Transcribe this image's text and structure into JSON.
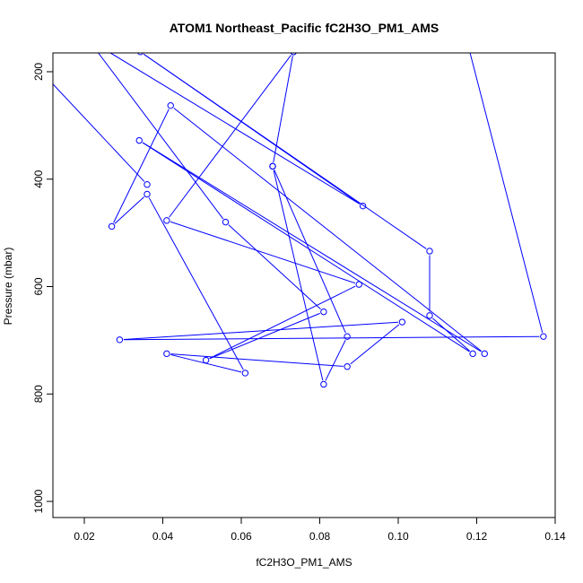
{
  "chart_data": {
    "type": "line",
    "title": "ATOM1 Northeast_Pacific fC2H3O_PM1_AMS",
    "xlabel": "fC2H3O_PM1_AMS",
    "ylabel": "Pressure (mbar)",
    "xlim": [
      0.012,
      0.14
    ],
    "ylim": [
      1030,
      165
    ],
    "y_reversed": true,
    "x_ticks": [
      0.02,
      0.04,
      0.06,
      0.08,
      0.1,
      0.12,
      0.14
    ],
    "x_tick_labels": [
      "0.02",
      "0.04",
      "0.06",
      "0.08",
      "0.10",
      "0.12",
      "0.14"
    ],
    "y_ticks": [
      200,
      400,
      600,
      800,
      1000
    ],
    "y_tick_labels": [
      "200",
      "400",
      "600",
      "800",
      "1000"
    ],
    "marker": "open-circle",
    "color": "#0000ff",
    "grid": false,
    "series": [
      {
        "points": [
          [
            0.116,
            100
          ],
          [
            0.137,
            693
          ],
          [
            0.029,
            699
          ],
          [
            0.101,
            666
          ],
          [
            0.087,
            749
          ],
          [
            0.041,
            725
          ],
          [
            0.061,
            761
          ],
          [
            0.036,
            428
          ],
          [
            0.027,
            488
          ],
          [
            0.042,
            263
          ],
          [
            0.122,
            725
          ],
          [
            0.034,
            328
          ],
          [
            0.119,
            725
          ],
          [
            0.108,
            654
          ],
          [
            0.108,
            534
          ],
          [
            0.0343,
            163
          ],
          [
            0.091,
            450
          ],
          [
            0.021,
            140
          ],
          [
            0.056,
            480
          ],
          [
            0.081,
            647
          ],
          [
            0.051,
            737
          ],
          [
            0.09,
            596
          ],
          [
            0.041,
            477
          ],
          [
            0.0733,
            163
          ]
        ]
      },
      {
        "points": [
          [
            0.0043,
            163
          ],
          [
            0.036,
            410
          ]
        ]
      },
      {
        "points": [
          [
            0.0733,
            163
          ],
          [
            0.068,
            376
          ],
          [
            0.087,
            693
          ],
          [
            0.081,
            782
          ],
          [
            0.068,
            376
          ]
        ]
      }
    ]
  }
}
